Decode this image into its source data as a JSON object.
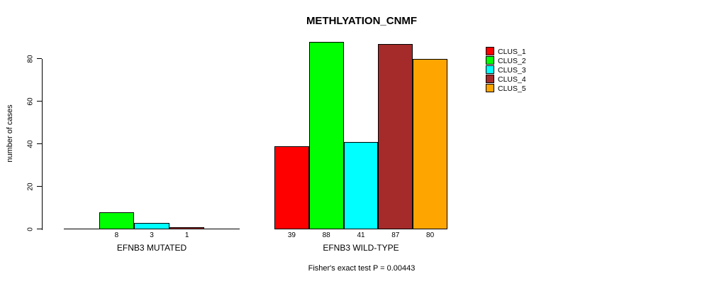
{
  "title": "METHLYATION_CNMF",
  "caption": "Fisher's exact test P = 0.00443",
  "y_axis": {
    "label": "number of cases",
    "ticks": [
      "0",
      "20",
      "40",
      "60",
      "80"
    ]
  },
  "legend": {
    "items": [
      {
        "label": "CLUS_1",
        "color": "#FF0000"
      },
      {
        "label": "CLUS_2",
        "color": "#00FF00"
      },
      {
        "label": "CLUS_3",
        "color": "#00FFFF"
      },
      {
        "label": "CLUS_4",
        "color": "#A52A2A"
      },
      {
        "label": "CLUS_5",
        "color": "#FFA500"
      }
    ]
  },
  "chart_data": {
    "type": "bar",
    "title": "METHLYATION_CNMF",
    "ylabel": "number of cases",
    "xlabel": "",
    "ylim": [
      0,
      88
    ],
    "y_ticks": [
      0,
      20,
      40,
      60,
      80
    ],
    "grid": false,
    "legend_position": "right",
    "categories": [
      "EFNB3 MUTATED",
      "EFNB3 WILD-TYPE"
    ],
    "series": [
      {
        "name": "CLUS_1",
        "color": "#FF0000",
        "values": [
          0,
          39
        ]
      },
      {
        "name": "CLUS_2",
        "color": "#00FF00",
        "values": [
          8,
          88
        ]
      },
      {
        "name": "CLUS_3",
        "color": "#00FFFF",
        "values": [
          3,
          41
        ]
      },
      {
        "name": "CLUS_4",
        "color": "#A52A2A",
        "values": [
          1,
          87
        ]
      },
      {
        "name": "CLUS_5",
        "color": "#FFA500",
        "values": [
          0,
          80
        ]
      }
    ],
    "bar_value_labels_shown": [
      [
        "",
        "8",
        "3",
        "1",
        ""
      ],
      [
        "39",
        "88",
        "41",
        "87",
        "80"
      ]
    ],
    "annotation": "Fisher's exact test P = 0.00443"
  }
}
